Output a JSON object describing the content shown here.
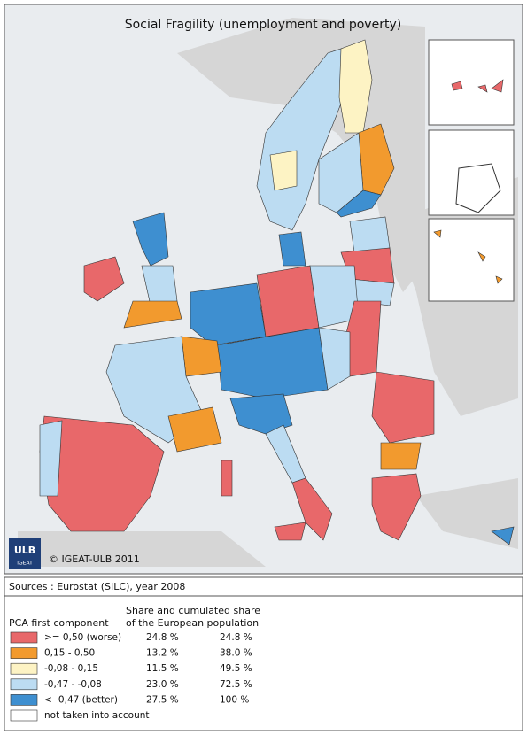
{
  "title": "Social Fragility (unemployment and poverty)",
  "logo": {
    "main": "ULB",
    "sub": "IGEAT"
  },
  "copyright": "© IGEAT-ULB 2011",
  "sources": "Sources : Eurostat (SILC), year 2008",
  "legend": {
    "title": "PCA first component",
    "share_header": [
      "Share and cumulated share",
      "of the European population"
    ],
    "classes": [
      {
        "label": ">= 0,50  (worse)",
        "share": "24.8 %",
        "cumulated": "24.8 %",
        "color": "#e8686a"
      },
      {
        "label": "0,15 - 0,50",
        "share": "13.2 %",
        "cumulated": "38.0 %",
        "color": "#f29a2e"
      },
      {
        "label": "-0,08 - 0,15",
        "share": "11.5 %",
        "cumulated": "49.5 %",
        "color": "#fdf3c4"
      },
      {
        "label": "-0,47 - -0,08",
        "share": "23.0 %",
        "cumulated": "72.5 %",
        "color": "#bcdcf2"
      },
      {
        "label": "< -0,47  (better)",
        "share": "27.5 %",
        "cumulated": "100 %",
        "color": "#3e8fd0"
      },
      {
        "label": "not taken into account",
        "color": "#ffffff"
      }
    ]
  }
}
